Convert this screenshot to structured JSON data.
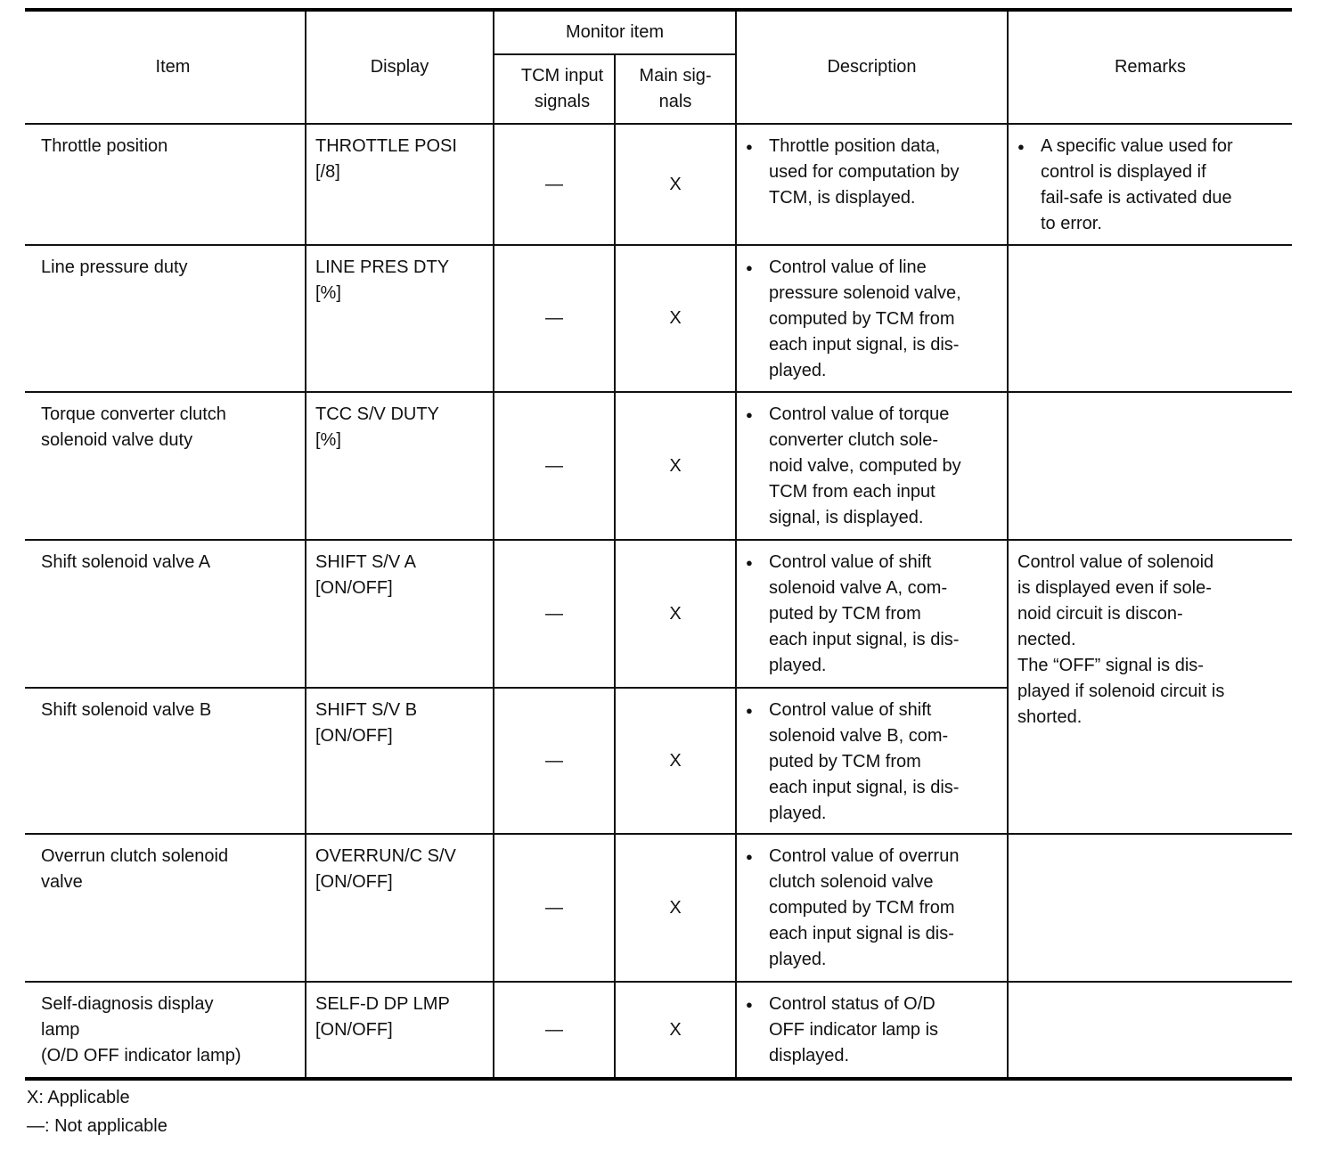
{
  "header": {
    "item": "Item",
    "display": "Display",
    "monitor_item": "Monitor item",
    "tcm_input_signals": "TCM input\nsignals",
    "main_signals": "Main sig-\nnals",
    "description": "Description",
    "remarks": "Remarks"
  },
  "rows": [
    {
      "item": "Throttle position",
      "display": "THROTTLE POSI\n[/8]",
      "tcm": "—",
      "main": "X",
      "description": "Throttle position data,\nused for computation by\nTCM, is displayed.",
      "remarks": "A specific value used for\ncontrol is displayed if\nfail-safe is activated due\nto error."
    },
    {
      "item": "Line pressure duty",
      "display": "LINE PRES DTY\n[%]",
      "tcm": "—",
      "main": "X",
      "description": "Control value of line\npressure solenoid valve,\ncomputed by TCM from\neach input signal, is dis-\nplayed.",
      "remarks": ""
    },
    {
      "item": "Torque converter clutch\nsolenoid valve duty",
      "display": "TCC S/V DUTY\n[%]",
      "tcm": "—",
      "main": "X",
      "description": "Control value of torque\nconverter clutch sole-\nnoid valve, computed by\nTCM from each input\nsignal, is displayed.",
      "remarks": ""
    },
    {
      "item": "Shift solenoid valve A",
      "display": "SHIFT S/V A\n[ON/OFF]",
      "tcm": "—",
      "main": "X",
      "description": "Control value of shift\nsolenoid valve A, com-\nputed by TCM from\neach input signal, is dis-\nplayed.",
      "remarks": "Control value of solenoid\nis displayed even if sole-\nnoid circuit is discon-\nnected.\nThe “OFF” signal is dis-\nplayed if solenoid circuit is\nshorted."
    },
    {
      "item": "Shift solenoid valve B",
      "display": "SHIFT S/V B\n[ON/OFF]",
      "tcm": "—",
      "main": "X",
      "description": "Control value of shift\nsolenoid valve B, com-\nputed by TCM from\neach input signal, is dis-\nplayed."
    },
    {
      "item": "Overrun clutch solenoid\nvalve",
      "display": "OVERRUN/C S/V\n[ON/OFF]",
      "tcm": "—",
      "main": "X",
      "description": "Control value of overrun\nclutch solenoid valve\ncomputed by TCM from\neach input signal is dis-\nplayed.",
      "remarks": ""
    },
    {
      "item": "Self-diagnosis display\nlamp\n(O/D OFF indicator lamp)",
      "display": "SELF-D DP LMP\n[ON/OFF]",
      "tcm": "—",
      "main": "X",
      "description": "Control status of O/D\nOFF indicator lamp is\ndisplayed.",
      "remarks": ""
    }
  ],
  "legend": {
    "applicable": "X: Applicable",
    "not_applicable": "—: Not applicable"
  }
}
